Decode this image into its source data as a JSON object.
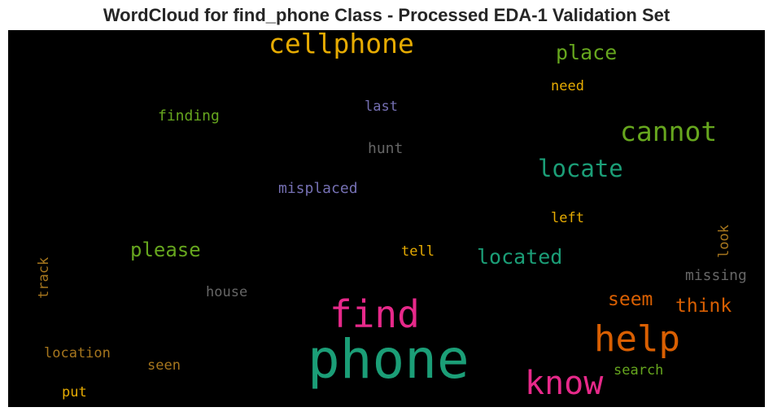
{
  "title": "WordCloud for find_phone Class - Processed EDA-1 Validation Set",
  "words": [
    {
      "text": "phone",
      "color": "#1b9e77"
    },
    {
      "text": "find",
      "color": "#e7298a"
    },
    {
      "text": "help",
      "color": "#d95f02"
    },
    {
      "text": "know",
      "color": "#e7298a"
    },
    {
      "text": "cellphone",
      "color": "#e6ab02"
    },
    {
      "text": "cannot",
      "color": "#66a61e"
    },
    {
      "text": "locate",
      "color": "#1b9e77"
    },
    {
      "text": "place",
      "color": "#66a61e"
    },
    {
      "text": "located",
      "color": "#1b9e77"
    },
    {
      "text": "please",
      "color": "#66a61e"
    },
    {
      "text": "think",
      "color": "#d95f02"
    },
    {
      "text": "seem",
      "color": "#d95f02"
    },
    {
      "text": "misplaced",
      "color": "#7570b3"
    },
    {
      "text": "hunt",
      "color": "#666666"
    },
    {
      "text": "last",
      "color": "#7570b3"
    },
    {
      "text": "finding",
      "color": "#66a61e"
    },
    {
      "text": "need",
      "color": "#e6ab02"
    },
    {
      "text": "left",
      "color": "#e6ab02"
    },
    {
      "text": "tell",
      "color": "#e6ab02"
    },
    {
      "text": "missing",
      "color": "#666666"
    },
    {
      "text": "search",
      "color": "#66a61e"
    },
    {
      "text": "house",
      "color": "#666666"
    },
    {
      "text": "location",
      "color": "#a6761d"
    },
    {
      "text": "seen",
      "color": "#a6761d"
    },
    {
      "text": "put",
      "color": "#e6ab02"
    },
    {
      "text": "track",
      "color": "#a6761d"
    },
    {
      "text": "look",
      "color": "#a6761d"
    }
  ]
}
